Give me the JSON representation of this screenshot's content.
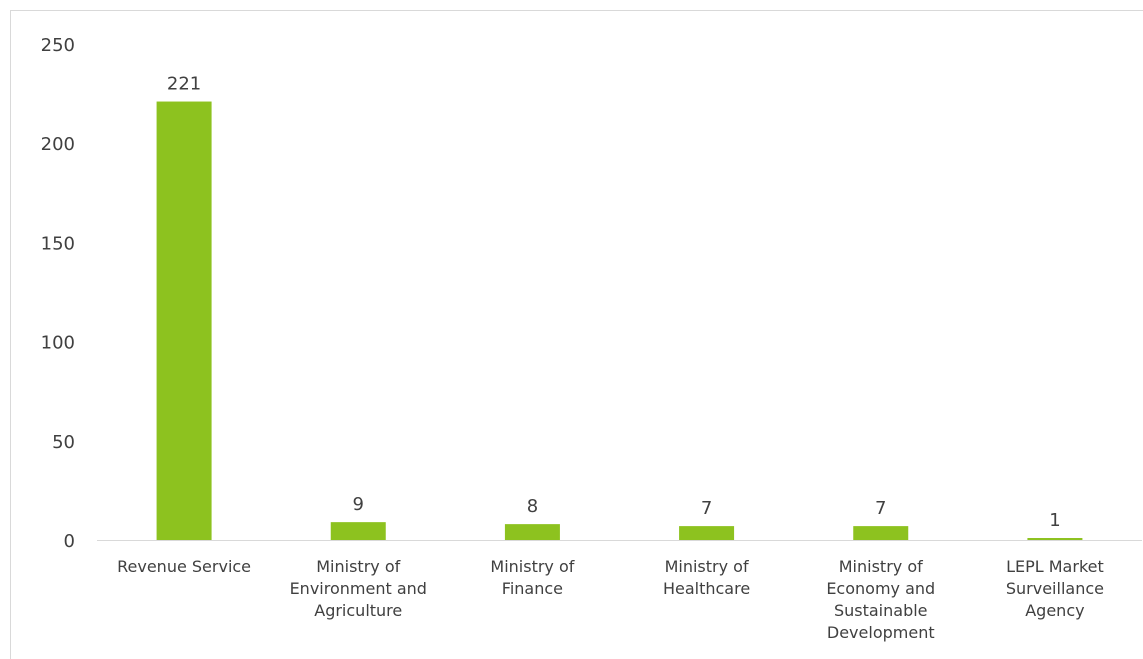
{
  "chart_data": {
    "type": "bar",
    "title": "",
    "xlabel": "",
    "ylabel": "",
    "ylim": [
      0,
      250
    ],
    "yticks": [
      0,
      50,
      100,
      150,
      200,
      250
    ],
    "grid": false,
    "bar_color": "#8dc21f",
    "categories": [
      [
        "Revenue Service"
      ],
      [
        "Ministry of",
        "Environment and",
        "Agriculture"
      ],
      [
        "Ministry of",
        "Finance"
      ],
      [
        "Ministry of",
        "Healthcare"
      ],
      [
        "Ministry of",
        "Economy and",
        "Sustainable",
        "Development"
      ],
      [
        "LEPL Market",
        "Surveillance",
        "Agency"
      ]
    ],
    "values": [
      221,
      9,
      8,
      7,
      7,
      1
    ]
  }
}
